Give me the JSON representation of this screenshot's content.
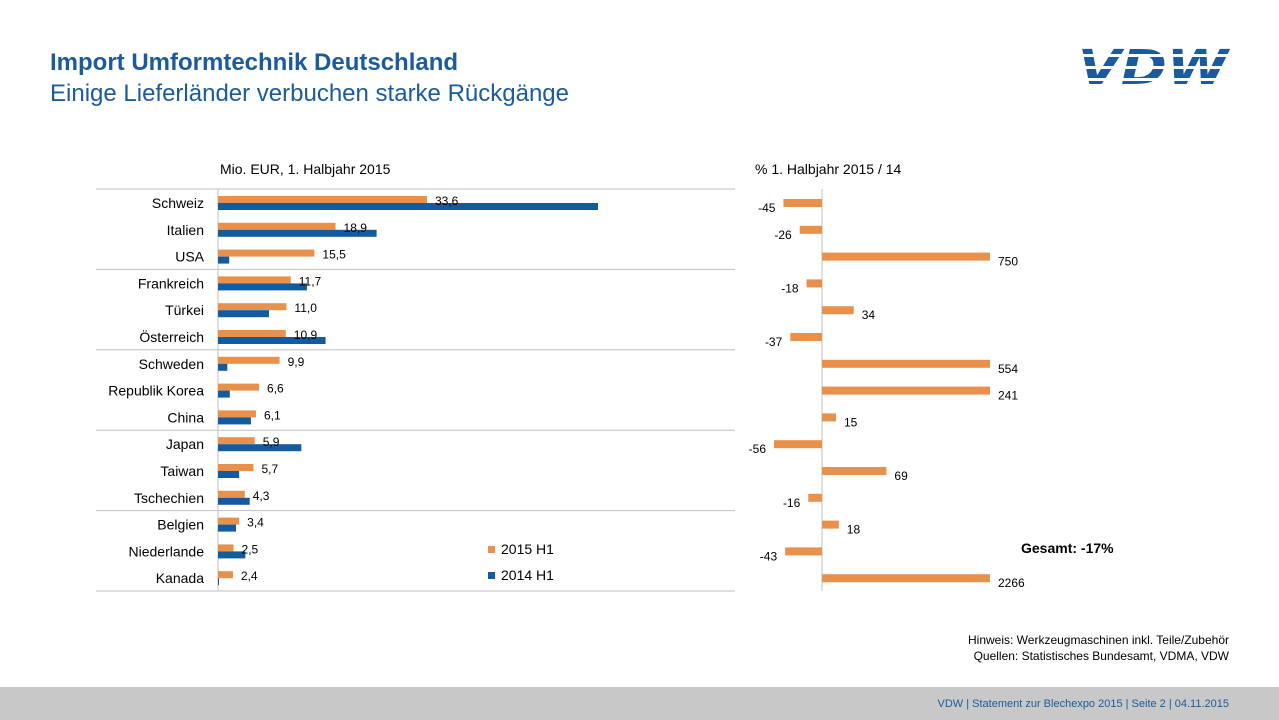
{
  "header": {
    "title": "Import Umformtechnik Deutschland",
    "subtitle": "Einige Lieferländer verbuchen starke Rückgänge",
    "logo_text": "VDW"
  },
  "colors": {
    "accent_blue": "#1b5b9c",
    "series_2015": "#e9914a",
    "series_2014": "#135b9f",
    "footer_bg": "#c8c8c8"
  },
  "chart_data": [
    {
      "type": "bar",
      "orientation": "horizontal",
      "title": "Mio. EUR, 1. Halbjahr 2015",
      "categories": [
        "Schweiz",
        "Italien",
        "USA",
        "Frankreich",
        "Türkei",
        "Österreich",
        "Schweden",
        "Republik Korea",
        "China",
        "Japan",
        "Taiwan",
        "Tschechien",
        "Belgien",
        "Niederlande",
        "Kanada"
      ],
      "series": [
        {
          "name": "2015 H1",
          "values": [
            33.6,
            18.9,
            15.5,
            11.7,
            11.0,
            10.9,
            9.9,
            6.6,
            6.1,
            5.9,
            5.7,
            4.3,
            3.4,
            2.5,
            2.4
          ],
          "labels": [
            "33,6",
            "18,9",
            "15,5",
            "11,7",
            "11,0",
            "10,9",
            "9,9",
            "6,6",
            "6,1",
            "5,9",
            "5,7",
            "4,3",
            "3,4",
            "2,5",
            "2,4"
          ]
        },
        {
          "name": "2014 H1",
          "values": [
            61.1,
            25.5,
            1.8,
            14.3,
            8.2,
            17.3,
            1.5,
            1.9,
            5.3,
            13.4,
            3.4,
            5.1,
            2.9,
            4.4,
            0.1
          ]
        }
      ],
      "xlim": [
        0,
        75
      ],
      "group_breaks_after": [
        2,
        5,
        8,
        11
      ],
      "legend": {
        "position": "bottom-right-inside",
        "entries": [
          "2015 H1",
          "2014 H1"
        ]
      }
    },
    {
      "type": "bar",
      "orientation": "horizontal",
      "title": "% 1. Halbjahr 2015 / 14",
      "categories": [
        "Schweiz",
        "Italien",
        "USA",
        "Frankreich",
        "Türkei",
        "Österreich",
        "Schweden",
        "Republik Korea",
        "China",
        "Japan",
        "Taiwan",
        "Tschechien",
        "Belgien",
        "Niederlande",
        "Kanada"
      ],
      "values": [
        -45,
        -26,
        750,
        -18,
        34,
        -37,
        554,
        241,
        15,
        -56,
        69,
        -16,
        18,
        -43,
        2266
      ],
      "labels": [
        "-45",
        "-26",
        "750",
        "-18",
        "34",
        "-37",
        "554",
        "241",
        "15",
        "-56",
        "69",
        "-16",
        "18",
        "-43",
        "2266"
      ],
      "clip": [
        -60,
        180
      ],
      "annotation": "Gesamt: -17%"
    }
  ],
  "notes": {
    "line1": "Hinweis: Werkzeugmaschinen inkl. Teile/Zubehör",
    "line2": "Quellen: Statistisches Bundesamt, VDMA, VDW"
  },
  "footer": {
    "text": "VDW  |  Statement zur Blechexpo 2015  |  Seite 2  |  04.11.2015"
  }
}
